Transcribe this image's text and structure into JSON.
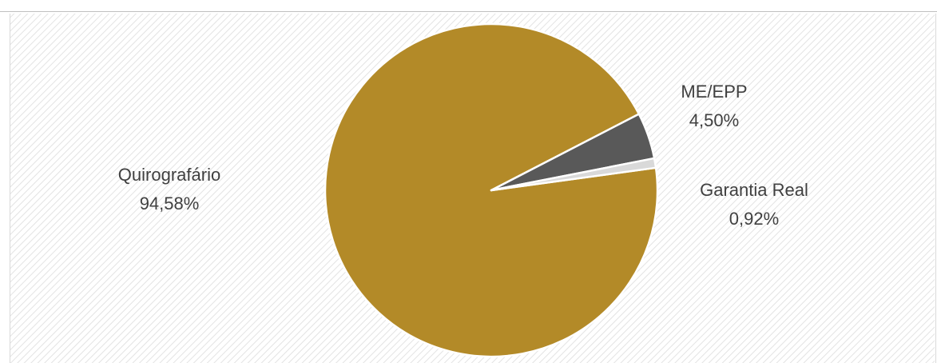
{
  "chart_data": {
    "type": "pie",
    "slices": [
      {
        "label": "Quirografário",
        "value": 94.58,
        "value_label": "94,58%",
        "color": "#b38a28"
      },
      {
        "label": "ME/EPP",
        "value": 4.5,
        "value_label": "4,50%",
        "color": "#595959"
      },
      {
        "label": "Garantia Real",
        "value": 0.92,
        "value_label": "0,92%",
        "color": "#d9d9d9"
      }
    ],
    "legend": "none",
    "background": "diagonal-hatch"
  }
}
